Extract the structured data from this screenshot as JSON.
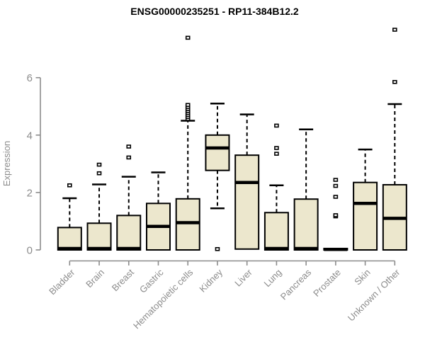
{
  "page": {
    "title": "ENSG00000235251 - RP11-384B12.2"
  },
  "chart_data": {
    "type": "boxplot",
    "title": "ENSG00000235251 - RP11-384B12.2",
    "xlabel": "",
    "ylabel": "Expression",
    "ylim": [
      0,
      6
    ],
    "yticks": [
      0,
      2,
      4,
      6
    ],
    "grid": false,
    "legend": false,
    "categories": [
      "Bladder",
      "Brain",
      "Breast",
      "Gastric",
      "Hematopoietic cells",
      "Kidney",
      "Liver",
      "Lung",
      "Pancreas",
      "Prostate",
      "Skin",
      "Unknown / Other"
    ],
    "boxes": [
      {
        "category": "Bladder",
        "q1": 0,
        "median": 0.05,
        "q3": 0.78,
        "whisker_low": 0,
        "whisker_high": 1.8,
        "outliers": [
          2.25
        ]
      },
      {
        "category": "Brain",
        "q1": 0,
        "median": 0.05,
        "q3": 0.93,
        "whisker_low": 0,
        "whisker_high": 2.28,
        "outliers": [
          2.67,
          2.97
        ]
      },
      {
        "category": "Breast",
        "q1": 0,
        "median": 0.05,
        "q3": 1.2,
        "whisker_low": 0,
        "whisker_high": 2.55,
        "outliers": [
          3.22,
          3.6
        ]
      },
      {
        "category": "Gastric",
        "q1": 0,
        "median": 0.82,
        "q3": 1.62,
        "whisker_low": 0,
        "whisker_high": 2.7,
        "outliers": []
      },
      {
        "category": "Hematopoietic cells",
        "q1": 0,
        "median": 0.95,
        "q3": 1.78,
        "whisker_low": 0,
        "whisker_high": 4.5,
        "outliers": [
          4.56,
          4.63,
          4.7,
          4.77,
          4.84,
          4.91,
          4.98,
          5.05,
          7.39
        ]
      },
      {
        "category": "Kidney",
        "q1": 2.77,
        "median": 3.55,
        "q3": 4.0,
        "whisker_low": 1.45,
        "whisker_high": 5.1,
        "outliers": [
          0.03
        ]
      },
      {
        "category": "Liver",
        "q1": 0.03,
        "median": 2.35,
        "q3": 3.3,
        "whisker_low": 0.03,
        "whisker_high": 4.72,
        "outliers": []
      },
      {
        "category": "Lung",
        "q1": 0,
        "median": 0.05,
        "q3": 1.3,
        "whisker_low": 0,
        "whisker_high": 2.25,
        "outliers": [
          3.35,
          3.55,
          4.33
        ]
      },
      {
        "category": "Pancreas",
        "q1": 0,
        "median": 0.05,
        "q3": 1.77,
        "whisker_low": 0,
        "whisker_high": 4.2,
        "outliers": []
      },
      {
        "category": "Prostate",
        "q1": 0,
        "median": 0.02,
        "q3": 0.05,
        "whisker_low": 0,
        "whisker_high": 0.05,
        "outliers": [
          1.17,
          1.21,
          1.85,
          2.23,
          2.44
        ]
      },
      {
        "category": "Skin",
        "q1": 0,
        "median": 1.62,
        "q3": 2.35,
        "whisker_low": 0,
        "whisker_high": 3.5,
        "outliers": []
      },
      {
        "category": "Unknown / Other",
        "q1": 0,
        "median": 1.1,
        "q3": 2.27,
        "whisker_low": 0,
        "whisker_high": 5.08,
        "outliers": [
          5.85,
          7.67
        ]
      }
    ],
    "colors": {
      "box_fill": "#ece7cd",
      "box_stroke": "#000000",
      "median": "#000000",
      "whisker": "#000000",
      "axis": "#8c8c8c",
      "tick_label": "#8c8c8c",
      "title": "#000000"
    }
  }
}
